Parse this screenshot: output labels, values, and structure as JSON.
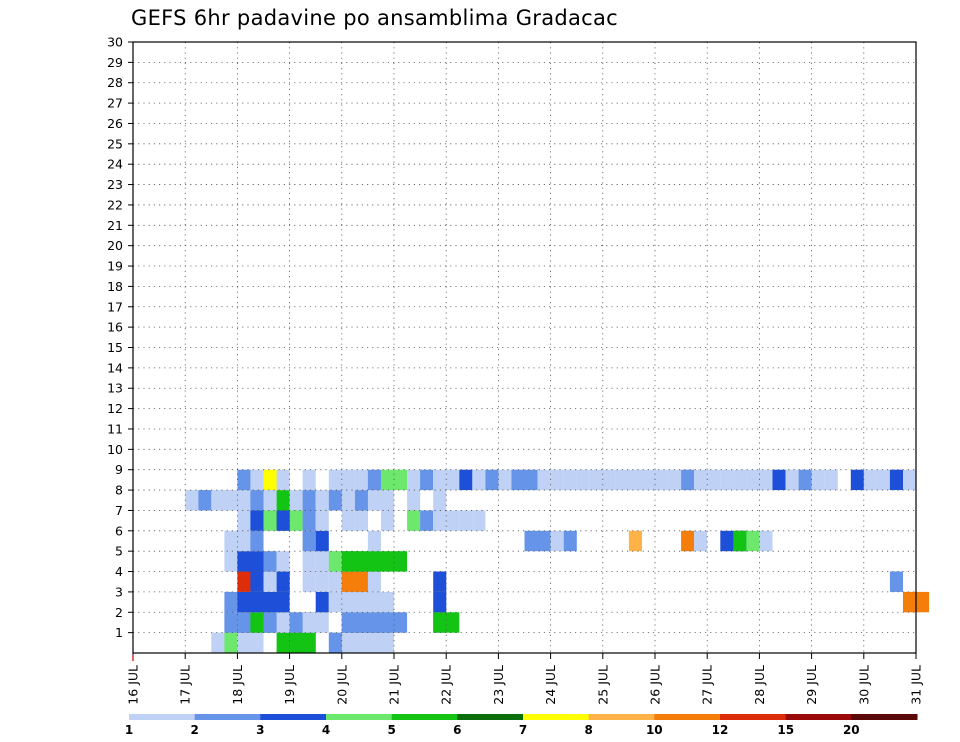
{
  "chart_data": {
    "type": "heatmap",
    "title": "GEFS 6hr padavine po ansamblima Gradacac",
    "xlabel": "",
    "ylabel": "",
    "x_tick_labels": [
      "16 JUL",
      "17 JUL",
      "18 JUL",
      "19 JUL",
      "20 JUL",
      "21 JUL",
      "22 JUL",
      "23 JUL",
      "24 JUL",
      "25 JUL",
      "26 JUL",
      "27 JUL",
      "28 JUL",
      "29 JUL",
      "30 JUL",
      "31 JUL"
    ],
    "xlim": [
      0,
      15
    ],
    "y_tick_labels": [
      "1",
      "2",
      "3",
      "4",
      "5",
      "6",
      "7",
      "8",
      "9",
      "10",
      "11",
      "12",
      "13",
      "14",
      "15",
      "16",
      "17",
      "18",
      "19",
      "20",
      "21",
      "22",
      "23",
      "24",
      "25",
      "26",
      "27",
      "28",
      "29",
      "30"
    ],
    "ylim": [
      0,
      30
    ],
    "grid": true,
    "x_step_days": 0.25,
    "colorbar": {
      "labels": [
        "1",
        "2",
        "3",
        "4",
        "5",
        "6",
        "7",
        "8",
        "10",
        "12",
        "15",
        "20"
      ],
      "colors": [
        "#bfd1f5",
        "#6694e8",
        "#1e4fd8",
        "#6de86d",
        "#14c414",
        "#0a6e0a",
        "#ffff00",
        "#ffb347",
        "#f57d0a",
        "#dd2d0a",
        "#9b0a0a",
        "#5a0808"
      ]
    },
    "cells": [
      [
        0,
        1.5,
        3,
        0
      ],
      [
        0,
        1.75,
        1,
        3
      ],
      [
        0,
        2,
        2,
        0
      ],
      [
        0,
        2.75,
        3,
        4
      ],
      [
        0,
        3.75,
        4,
        1
      ],
      [
        0,
        4,
        4,
        0
      ],
      [
        1,
        1.75,
        1,
        0
      ],
      [
        1,
        1.75,
        2,
        1
      ],
      [
        1,
        2,
        2,
        1
      ],
      [
        1,
        2.25,
        3,
        4
      ],
      [
        1,
        2.5,
        4,
        1
      ],
      [
        1,
        2.75,
        1,
        0
      ],
      [
        1,
        3.25,
        1,
        0
      ],
      [
        1,
        3.5,
        1,
        0
      ],
      [
        1,
        4,
        4,
        1
      ],
      [
        1,
        4,
        5,
        1
      ],
      [
        1,
        5.75,
        1,
        1
      ],
      [
        1,
        5.75,
        2,
        4
      ],
      [
        2,
        1.75,
        1,
        1
      ],
      [
        2,
        2,
        3,
        0
      ],
      [
        2,
        2,
        4,
        2
      ],
      [
        2,
        3.5,
        1,
        2
      ],
      [
        2,
        3.75,
        5,
        0
      ],
      [
        2,
        5.75,
        1,
        2
      ],
      [
        2,
        14.75,
        2,
        8
      ],
      [
        3,
        1.5,
        0,
        0
      ],
      [
        3,
        2,
        1,
        9
      ],
      [
        3,
        2.25,
        1,
        2
      ],
      [
        3,
        2.5,
        1,
        0
      ],
      [
        3,
        2.75,
        1,
        2
      ],
      [
        3,
        3.25,
        1,
        0
      ],
      [
        3,
        3.5,
        1,
        0
      ],
      [
        3,
        3.75,
        4,
        0
      ],
      [
        3,
        4,
        2,
        8
      ],
      [
        3,
        5.75,
        1,
        2
      ],
      [
        3,
        14.5,
        1,
        1
      ],
      [
        4,
        1.75,
        1,
        0
      ],
      [
        4,
        2,
        1,
        2
      ],
      [
        4,
        2.25,
        1,
        2
      ],
      [
        4,
        2.5,
        1,
        1
      ],
      [
        4,
        2.75,
        1,
        0
      ],
      [
        4,
        3.25,
        1,
        0
      ],
      [
        4,
        3.5,
        3,
        0
      ],
      [
        4,
        3.75,
        4,
        3
      ],
      [
        4,
        4,
        5,
        4
      ],
      [
        5,
        1.75,
        1,
        0
      ],
      [
        5,
        2,
        1,
        0
      ],
      [
        5,
        2.25,
        1,
        1
      ],
      [
        5,
        3.25,
        1,
        1
      ],
      [
        5,
        3.5,
        1,
        2
      ],
      [
        5,
        4.5,
        1,
        0
      ],
      [
        5,
        7.5,
        1,
        1
      ],
      [
        5,
        7.75,
        1,
        1
      ],
      [
        5,
        8,
        1,
        0
      ],
      [
        5,
        8.25,
        1,
        1
      ],
      [
        5,
        9.5,
        1,
        7
      ],
      [
        5,
        10.5,
        1,
        8
      ],
      [
        5,
        10.75,
        1,
        0
      ],
      [
        5,
        11.25,
        2,
        2
      ],
      [
        5,
        11.5,
        1,
        4
      ],
      [
        5,
        11.75,
        1,
        3
      ],
      [
        5,
        12,
        1,
        0
      ],
      [
        6,
        2,
        2,
        0
      ],
      [
        6,
        2.25,
        1,
        2
      ],
      [
        6,
        2.5,
        3,
        3
      ],
      [
        6,
        2.75,
        1,
        2
      ],
      [
        6,
        3.25,
        1,
        1
      ],
      [
        6,
        3.5,
        1,
        0
      ],
      [
        6,
        4,
        1,
        0
      ],
      [
        6,
        4.25,
        1,
        0
      ],
      [
        6,
        4.75,
        1,
        0
      ],
      [
        6,
        5.25,
        1,
        3
      ],
      [
        6,
        5.5,
        1,
        1
      ],
      [
        6,
        5.75,
        1,
        0
      ],
      [
        6,
        6,
        1,
        0
      ],
      [
        6,
        6.25,
        1,
        0
      ],
      [
        6,
        6.5,
        1,
        0
      ],
      [
        7,
        1,
        1,
        0
      ],
      [
        7,
        1.25,
        1,
        1
      ],
      [
        7,
        1.5,
        5,
        0
      ],
      [
        7,
        1.75,
        1,
        0
      ],
      [
        7,
        2,
        1,
        0
      ],
      [
        7,
        2.25,
        1,
        1
      ],
      [
        7,
        2.75,
        1,
        4
      ],
      [
        7,
        3,
        1,
        0
      ],
      [
        7,
        3.25,
        1,
        1
      ],
      [
        7,
        3.5,
        1,
        0
      ],
      [
        7,
        3.75,
        1,
        1
      ],
      [
        7,
        4,
        1,
        0
      ],
      [
        7,
        4.25,
        1,
        1
      ],
      [
        7,
        4.5,
        1,
        0
      ],
      [
        7,
        4.75,
        1,
        0
      ],
      [
        7,
        5.25,
        1,
        0
      ],
      [
        7,
        5.75,
        1,
        0
      ],
      [
        8,
        2,
        1,
        1
      ],
      [
        8,
        2.25,
        1,
        0
      ],
      [
        8,
        2.5,
        2,
        6
      ],
      [
        8,
        2.75,
        1,
        0
      ],
      [
        8,
        3.25,
        1,
        0
      ],
      [
        8,
        3.75,
        1,
        0
      ],
      [
        8,
        4,
        1,
        0
      ],
      [
        8,
        4.25,
        1,
        0
      ],
      [
        8,
        4.5,
        1,
        1
      ],
      [
        8,
        4.75,
        1,
        3
      ],
      [
        8,
        5,
        1,
        3
      ],
      [
        8,
        5.25,
        1,
        0
      ],
      [
        8,
        5.5,
        1,
        1
      ],
      [
        8,
        5.75,
        1,
        0
      ],
      [
        8,
        6,
        1,
        0
      ],
      [
        8,
        6.25,
        1,
        2
      ],
      [
        8,
        6.5,
        1,
        0
      ],
      [
        8,
        6.75,
        1,
        1
      ],
      [
        8,
        7,
        1,
        0
      ],
      [
        8,
        7.25,
        1,
        1
      ],
      [
        8,
        7.5,
        1,
        1
      ],
      [
        8,
        7.75,
        1,
        0
      ],
      [
        8,
        8,
        1,
        0
      ],
      [
        8,
        8.25,
        1,
        0
      ],
      [
        8,
        8.5,
        1,
        0
      ],
      [
        8,
        8.75,
        1,
        0
      ],
      [
        8,
        9,
        1,
        0
      ],
      [
        8,
        9.25,
        1,
        0
      ],
      [
        8,
        9.5,
        1,
        0
      ],
      [
        8,
        9.75,
        1,
        0
      ],
      [
        8,
        10,
        1,
        0
      ],
      [
        8,
        10.25,
        1,
        0
      ],
      [
        8,
        10.5,
        1,
        1
      ],
      [
        8,
        10.75,
        1,
        0
      ],
      [
        8,
        11,
        1,
        0
      ],
      [
        8,
        11.25,
        1,
        0
      ],
      [
        8,
        11.5,
        1,
        0
      ],
      [
        8,
        11.75,
        1,
        0
      ],
      [
        8,
        12,
        1,
        0
      ],
      [
        8,
        12.25,
        1,
        2
      ],
      [
        8,
        12.5,
        1,
        0
      ],
      [
        8,
        12.75,
        1,
        1
      ],
      [
        8,
        13,
        1,
        0
      ],
      [
        8,
        13.25,
        1,
        0
      ],
      [
        8,
        13.75,
        1,
        2
      ],
      [
        8,
        14,
        1,
        0
      ],
      [
        8,
        14.25,
        1,
        0
      ],
      [
        8,
        14.5,
        1,
        2
      ],
      [
        8,
        14.75,
        1,
        0
      ]
    ]
  }
}
